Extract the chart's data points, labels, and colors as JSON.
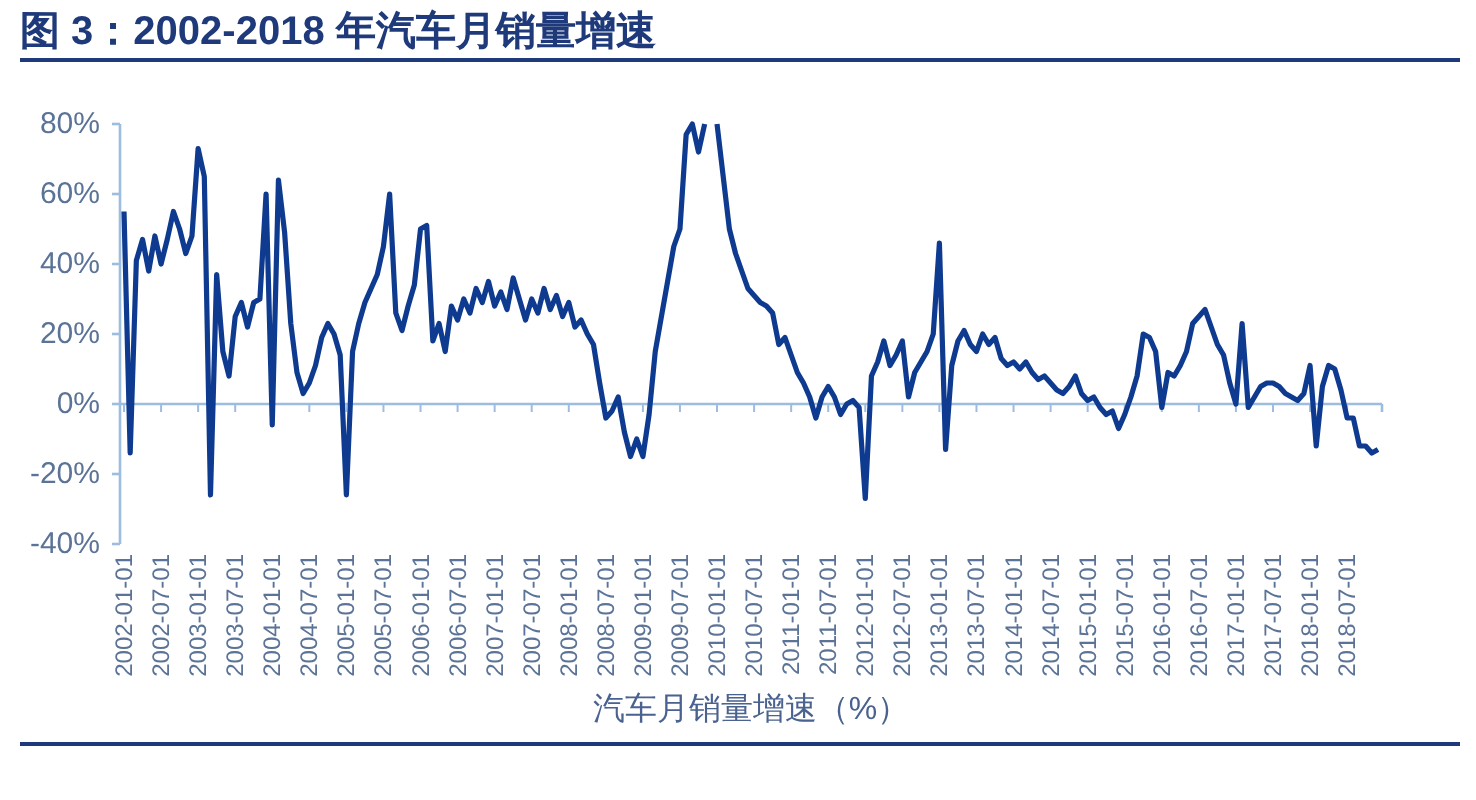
{
  "chart_data": {
    "type": "line",
    "title": "图 3：2002-2018 年汽车月销量增速",
    "xlabel": "汽车月销量增速（%）",
    "x": [
      "2002-01",
      "2002-02",
      "2002-03",
      "2002-04",
      "2002-05",
      "2002-06",
      "2002-07",
      "2002-08",
      "2002-09",
      "2002-10",
      "2002-11",
      "2002-12",
      "2003-01",
      "2003-02",
      "2003-03",
      "2003-04",
      "2003-05",
      "2003-06",
      "2003-07",
      "2003-08",
      "2003-09",
      "2003-10",
      "2003-11",
      "2003-12",
      "2004-01",
      "2004-02",
      "2004-03",
      "2004-04",
      "2004-05",
      "2004-06",
      "2004-07",
      "2004-08",
      "2004-09",
      "2004-10",
      "2004-11",
      "2004-12",
      "2005-01",
      "2005-02",
      "2005-03",
      "2005-04",
      "2005-05",
      "2005-06",
      "2005-07",
      "2005-08",
      "2005-09",
      "2005-10",
      "2005-11",
      "2005-12",
      "2006-01",
      "2006-02",
      "2006-03",
      "2006-04",
      "2006-05",
      "2006-06",
      "2006-07",
      "2006-08",
      "2006-09",
      "2006-10",
      "2006-11",
      "2006-12",
      "2007-01",
      "2007-02",
      "2007-03",
      "2007-04",
      "2007-05",
      "2007-06",
      "2007-07",
      "2007-08",
      "2007-09",
      "2007-10",
      "2007-11",
      "2007-12",
      "2008-01",
      "2008-02",
      "2008-03",
      "2008-04",
      "2008-05",
      "2008-06",
      "2008-07",
      "2008-08",
      "2008-09",
      "2008-10",
      "2008-11",
      "2008-12",
      "2009-01",
      "2009-02",
      "2009-03",
      "2009-04",
      "2009-05",
      "2009-06",
      "2009-07",
      "2009-08",
      "2009-09",
      "2009-10",
      "2009-11",
      "2009-12",
      "2010-01",
      "2010-02",
      "2010-03",
      "2010-04",
      "2010-05",
      "2010-06",
      "2010-07",
      "2010-08",
      "2010-09",
      "2010-10",
      "2010-11",
      "2010-12",
      "2011-01",
      "2011-02",
      "2011-03",
      "2011-04",
      "2011-05",
      "2011-06",
      "2011-07",
      "2011-08",
      "2011-09",
      "2011-10",
      "2011-11",
      "2011-12",
      "2012-01",
      "2012-02",
      "2012-03",
      "2012-04",
      "2012-05",
      "2012-06",
      "2012-07",
      "2012-08",
      "2012-09",
      "2012-10",
      "2012-11",
      "2012-12",
      "2013-01",
      "2013-02",
      "2013-03",
      "2013-04",
      "2013-05",
      "2013-06",
      "2013-07",
      "2013-08",
      "2013-09",
      "2013-10",
      "2013-11",
      "2013-12",
      "2014-01",
      "2014-02",
      "2014-03",
      "2014-04",
      "2014-05",
      "2014-06",
      "2014-07",
      "2014-08",
      "2014-09",
      "2014-10",
      "2014-11",
      "2014-12",
      "2015-01",
      "2015-02",
      "2015-03",
      "2015-04",
      "2015-05",
      "2015-06",
      "2015-07",
      "2015-08",
      "2015-09",
      "2015-10",
      "2015-11",
      "2015-12",
      "2016-01",
      "2016-02",
      "2016-03",
      "2016-04",
      "2016-05",
      "2016-06",
      "2016-07",
      "2016-08",
      "2016-09",
      "2016-10",
      "2016-11",
      "2016-12",
      "2017-01",
      "2017-02",
      "2017-03",
      "2017-04",
      "2017-05",
      "2017-06",
      "2017-07",
      "2017-08",
      "2017-09",
      "2017-10",
      "2017-11",
      "2017-12",
      "2018-01",
      "2018-02",
      "2018-03",
      "2018-04",
      "2018-05",
      "2018-06",
      "2018-07",
      "2018-08",
      "2018-09",
      "2018-10",
      "2018-11",
      "2018-12"
    ],
    "series": [
      {
        "color": "#0e3b8f",
        "values": [
          55,
          -14,
          41,
          47,
          38,
          48,
          40,
          47,
          55,
          50,
          43,
          48,
          73,
          65,
          -26,
          37,
          15,
          8,
          25,
          29,
          22,
          29,
          30,
          60,
          -6,
          64,
          49,
          23,
          9,
          3,
          6,
          11,
          19,
          23,
          20,
          14,
          -26,
          15,
          23,
          29,
          33,
          37,
          45,
          60,
          26,
          21,
          28,
          34,
          50,
          51,
          18,
          23,
          15,
          28,
          24,
          30,
          26,
          33,
          29,
          35,
          28,
          32,
          27,
          36,
          30,
          24,
          30,
          26,
          33,
          27,
          31,
          25,
          29,
          22,
          24,
          20,
          17,
          6,
          -4,
          -2,
          2,
          -8,
          -15,
          -10,
          -15,
          -3,
          15,
          25,
          35,
          45,
          50,
          77,
          80,
          72,
          80,
          null,
          80,
          65,
          50,
          43,
          38,
          33,
          31,
          29,
          28,
          26,
          17,
          19,
          14,
          9,
          6,
          2,
          -4,
          2,
          5,
          2,
          -3,
          0,
          1,
          -1,
          -27,
          8,
          12,
          18,
          11,
          14,
          18,
          2,
          9,
          12,
          15,
          20,
          46,
          -13,
          11,
          18,
          21,
          17,
          15,
          20,
          17,
          19,
          13,
          11,
          12,
          10,
          12,
          9,
          7,
          8,
          6,
          4,
          3,
          5,
          8,
          3,
          1,
          2,
          -1,
          -3,
          -2,
          -7,
          -3,
          2,
          8,
          20,
          19,
          15,
          -1,
          9,
          8,
          11,
          15,
          23,
          25,
          27,
          22,
          17,
          14,
          6,
          0,
          23,
          -1,
          2,
          5,
          6,
          6,
          5,
          3,
          2,
          1,
          3,
          11,
          -12,
          5,
          11,
          10,
          4,
          -4,
          -4,
          -12,
          -12,
          -14,
          -13
        ]
      }
    ],
    "xlim": [
      "2002-01",
      "2018-12"
    ],
    "xticks": [
      {
        "value": "2002-01",
        "label": "2002-01-01"
      },
      {
        "value": "2002-07",
        "label": "2002-07-01"
      },
      {
        "value": "2003-01",
        "label": "2003-01-01"
      },
      {
        "value": "2003-07",
        "label": "2003-07-01"
      },
      {
        "value": "2004-01",
        "label": "2004-01-01"
      },
      {
        "value": "2004-07",
        "label": "2004-07-01"
      },
      {
        "value": "2005-01",
        "label": "2005-01-01"
      },
      {
        "value": "2005-07",
        "label": "2005-07-01"
      },
      {
        "value": "2006-01",
        "label": "2006-01-01"
      },
      {
        "value": "2006-07",
        "label": "2006-07-01"
      },
      {
        "value": "2007-01",
        "label": "2007-01-01"
      },
      {
        "value": "2007-07",
        "label": "2007-07-01"
      },
      {
        "value": "2008-01",
        "label": "2008-01-01"
      },
      {
        "value": "2008-07",
        "label": "2008-07-01"
      },
      {
        "value": "2009-01",
        "label": "2009-01-01"
      },
      {
        "value": "2009-07",
        "label": "2009-07-01"
      },
      {
        "value": "2010-01",
        "label": "2010-01-01"
      },
      {
        "value": "2010-07",
        "label": "2010-07-01"
      },
      {
        "value": "2011-01",
        "label": "2011-01-01"
      },
      {
        "value": "2011-07",
        "label": "2011-07-01"
      },
      {
        "value": "2012-01",
        "label": "2012-01-01"
      },
      {
        "value": "2012-07",
        "label": "2012-07-01"
      },
      {
        "value": "2013-01",
        "label": "2013-01-01"
      },
      {
        "value": "2013-07",
        "label": "2013-07-01"
      },
      {
        "value": "2014-01",
        "label": "2014-01-01"
      },
      {
        "value": "2014-07",
        "label": "2014-07-01"
      },
      {
        "value": "2015-01",
        "label": "2015-01-01"
      },
      {
        "value": "2015-07",
        "label": "2015-07-01"
      },
      {
        "value": "2016-01",
        "label": "2016-01-01"
      },
      {
        "value": "2016-07",
        "label": "2016-07-01"
      },
      {
        "value": "2017-01",
        "label": "2017-01-01"
      },
      {
        "value": "2017-07",
        "label": "2017-07-01"
      },
      {
        "value": "2018-01",
        "label": "2018-01-01"
      },
      {
        "value": "2018-07",
        "label": "2018-07-01"
      }
    ],
    "ylim": [
      -40,
      80
    ],
    "yticks": [
      {
        "value": -40,
        "label": "-40%"
      },
      {
        "value": -20,
        "label": "-20%"
      },
      {
        "value": 0,
        "label": "0%"
      },
      {
        "value": 20,
        "label": "20%"
      },
      {
        "value": 40,
        "label": "40%"
      },
      {
        "value": 60,
        "label": "60%"
      },
      {
        "value": 80,
        "label": "80%"
      }
    ],
    "ref_lines": [
      {
        "axis": "y",
        "value": 0,
        "color": "#9dbde0"
      }
    ],
    "marker": "none",
    "line_style": "solid"
  }
}
